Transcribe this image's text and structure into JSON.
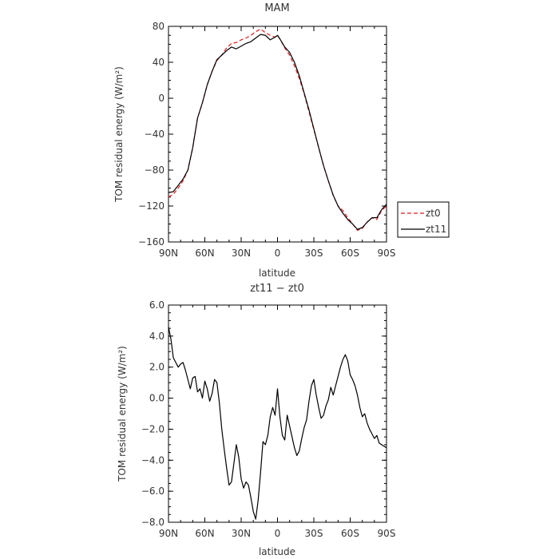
{
  "colors": {
    "zt0": "#e41a1c",
    "zt11": "#000000",
    "axis": "#000000"
  },
  "chart_data": [
    {
      "type": "line",
      "title": "MAM",
      "xlabel": "latitude",
      "ylabel": "TOM residual energy  (W/m²)",
      "xlim": [
        90,
        -90
      ],
      "ylim": [
        -160,
        80
      ],
      "xticks": [
        {
          "value": 90,
          "label": "90N"
        },
        {
          "value": 60,
          "label": "60N"
        },
        {
          "value": 30,
          "label": "30N"
        },
        {
          "value": 0,
          "label": "0"
        },
        {
          "value": -30,
          "label": "30S"
        },
        {
          "value": -60,
          "label": "60S"
        },
        {
          "value": -90,
          "label": "90S"
        }
      ],
      "yticks": [
        {
          "value": 80,
          "label": "80"
        },
        {
          "value": 40,
          "label": "40"
        },
        {
          "value": 0,
          "label": "0"
        },
        {
          "value": -40,
          "label": "−40"
        },
        {
          "value": -80,
          "label": "−80"
        },
        {
          "value": -120,
          "label": "−120"
        },
        {
          "value": -160,
          "label": "−160"
        }
      ],
      "legend_position": "right",
      "series": [
        {
          "name": "zt0",
          "style": "dashed",
          "color": "#e41a1c",
          "x": [
            90,
            86,
            82,
            78,
            74,
            70,
            66,
            62,
            58,
            54,
            50,
            46,
            42,
            38,
            34,
            30,
            26,
            22,
            18,
            14,
            10,
            6,
            2,
            0,
            -2,
            -6,
            -10,
            -14,
            -18,
            -22,
            -26,
            -30,
            -34,
            -38,
            -42,
            -46,
            -50,
            -54,
            -58,
            -62,
            -66,
            -70,
            -74,
            -78,
            -82,
            -86,
            -90
          ],
          "y": [
            -110,
            -107,
            -100,
            -92,
            -80,
            -55,
            -22,
            -5,
            15,
            30,
            42,
            48,
            56,
            61,
            62,
            65,
            67,
            70,
            74,
            77,
            73,
            70,
            68,
            70,
            66,
            56,
            48,
            36,
            22,
            5,
            -15,
            -35,
            -55,
            -75,
            -92,
            -108,
            -120,
            -125,
            -133,
            -140,
            -147,
            -145,
            -138,
            -133,
            -135,
            -125,
            -120
          ]
        },
        {
          "name": "zt11",
          "style": "solid",
          "color": "#000000",
          "x": [
            90,
            86,
            82,
            78,
            74,
            70,
            66,
            62,
            58,
            54,
            50,
            46,
            42,
            38,
            34,
            30,
            26,
            22,
            18,
            14,
            10,
            6,
            2,
            0,
            -2,
            -6,
            -10,
            -14,
            -18,
            -22,
            -26,
            -30,
            -34,
            -38,
            -42,
            -46,
            -50,
            -54,
            -58,
            -62,
            -66,
            -70,
            -74,
            -78,
            -82,
            -86,
            -90
          ],
          "y": [
            -105,
            -104,
            -97,
            -90,
            -80,
            -55,
            -22,
            -5,
            15,
            30,
            43,
            48,
            53,
            57,
            55,
            58,
            61,
            63,
            67,
            71,
            70,
            65,
            68,
            70,
            66,
            57,
            51,
            40,
            25,
            6,
            -13,
            -34,
            -55,
            -75,
            -92,
            -108,
            -120,
            -128,
            -135,
            -140,
            -146,
            -144,
            -138,
            -133,
            -133,
            -124,
            -118
          ]
        }
      ]
    },
    {
      "type": "line",
      "title": "zt11  −  zt0",
      "xlabel": "latitude",
      "ylabel": "TOM residual energy  (W/m²)",
      "xlim": [
        90,
        -90
      ],
      "ylim": [
        -8.0,
        6.0
      ],
      "xticks": [
        {
          "value": 90,
          "label": "90N"
        },
        {
          "value": 60,
          "label": "60N"
        },
        {
          "value": 30,
          "label": "30N"
        },
        {
          "value": 0,
          "label": "0"
        },
        {
          "value": -30,
          "label": "30S"
        },
        {
          "value": -60,
          "label": "60S"
        },
        {
          "value": -90,
          "label": "90S"
        }
      ],
      "yticks": [
        {
          "value": 6,
          "label": "6.0"
        },
        {
          "value": 4,
          "label": "4.0"
        },
        {
          "value": 2,
          "label": "2.0"
        },
        {
          "value": 0,
          "label": "0.0"
        },
        {
          "value": -2,
          "label": "−2.0"
        },
        {
          "value": -4,
          "label": "−4.0"
        },
        {
          "value": -6,
          "label": "−6.0"
        },
        {
          "value": -8,
          "label": "−8.0"
        }
      ],
      "series": [
        {
          "color": "#000000",
          "x": [
            90,
            88,
            86,
            84,
            82,
            80,
            78,
            76,
            74,
            72,
            70,
            68,
            66,
            64,
            62,
            60,
            58,
            56,
            54,
            52,
            50,
            48,
            46,
            44,
            42,
            40,
            38,
            36,
            34,
            32,
            30,
            28,
            26,
            24,
            22,
            20,
            18,
            16,
            14,
            12,
            10,
            8,
            6,
            4,
            2,
            0,
            -2,
            -4,
            -6,
            -8,
            -10,
            -12,
            -14,
            -16,
            -18,
            -20,
            -22,
            -24,
            -26,
            -28,
            -30,
            -32,
            -34,
            -36,
            -38,
            -40,
            -42,
            -44,
            -46,
            -48,
            -50,
            -52,
            -54,
            -56,
            -58,
            -60,
            -62,
            -64,
            -66,
            -68,
            -70,
            -72,
            -74,
            -76,
            -78,
            -80,
            -82,
            -84,
            -86,
            -88,
            -90
          ],
          "y": [
            4.6,
            3.8,
            2.6,
            2.3,
            2.0,
            2.2,
            2.3,
            1.8,
            1.2,
            0.6,
            1.3,
            1.4,
            0.4,
            0.6,
            0.0,
            1.1,
            0.6,
            -0.2,
            0.3,
            1.2,
            1.0,
            -0.3,
            -2.0,
            -3.3,
            -4.5,
            -5.6,
            -5.4,
            -4.2,
            -3.0,
            -3.8,
            -5.2,
            -5.8,
            -5.4,
            -5.6,
            -6.4,
            -7.3,
            -7.8,
            -6.6,
            -4.8,
            -2.8,
            -3.0,
            -2.4,
            -1.2,
            -0.6,
            -1.1,
            0.6,
            -1.2,
            -2.4,
            -2.7,
            -1.1,
            -1.8,
            -2.5,
            -3.2,
            -3.7,
            -3.4,
            -2.6,
            -1.9,
            -1.4,
            -0.2,
            0.8,
            1.2,
            0.2,
            -0.6,
            -1.3,
            -1.1,
            -0.5,
            -0.1,
            0.7,
            0.2,
            0.8,
            1.4,
            2.0,
            2.5,
            2.8,
            2.4,
            1.5,
            1.2,
            0.8,
            0.2,
            -0.6,
            -1.2,
            -1.0,
            -1.6,
            -2.0,
            -2.3,
            -2.6,
            -2.4,
            -2.9,
            -3.0,
            -3.1,
            -3.2
          ]
        }
      ]
    }
  ]
}
